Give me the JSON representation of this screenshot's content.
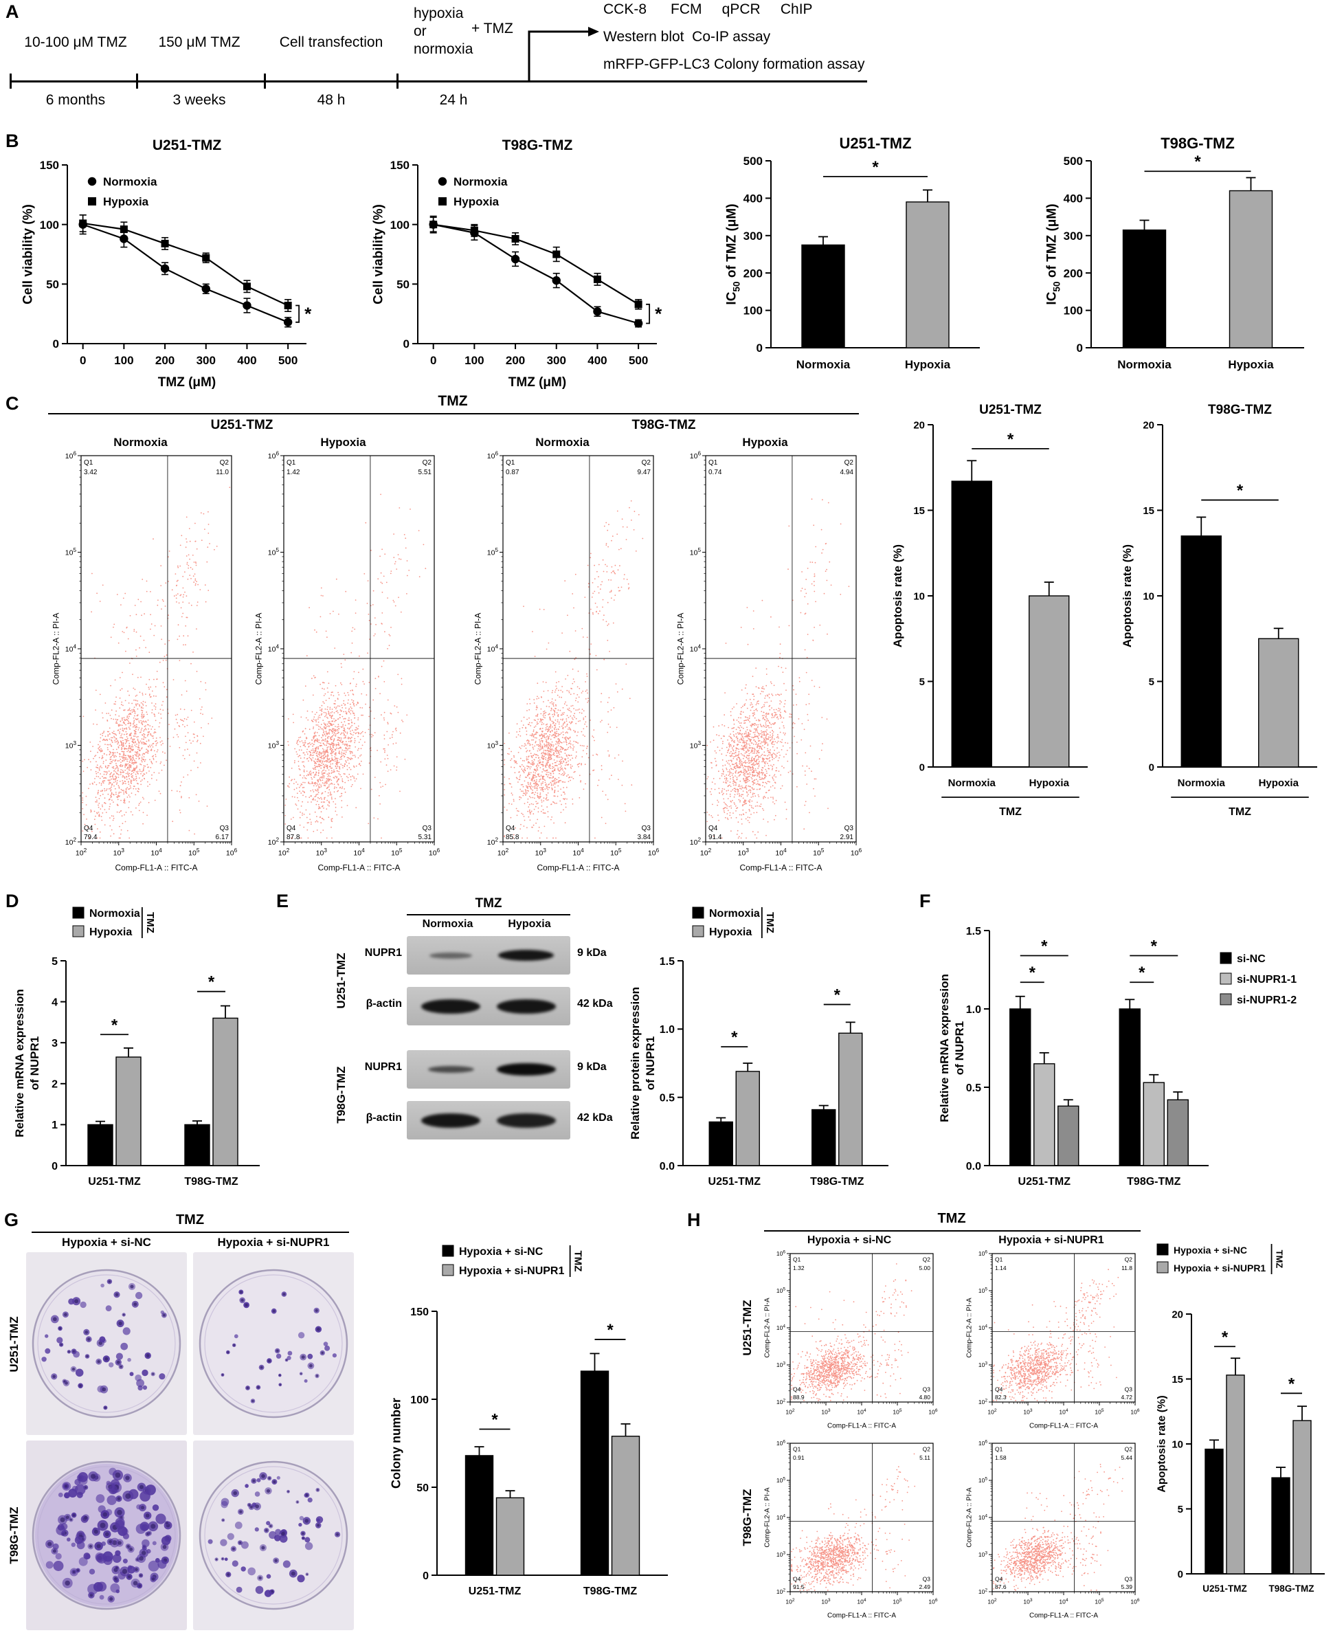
{
  "colors": {
    "bar_gray": "#a9a9a9",
    "bar_gray_light": "#bdbdbd",
    "bar_gray_dark": "#8c8c8c",
    "flow_red": "#ee3a24",
    "colony_purple": "#53379f"
  },
  "panelA": {
    "letter": "A",
    "stage_labels": [
      "10-100 μM TMZ",
      "150 μM TMZ",
      "Cell transfection"
    ],
    "hypoxia_lines": [
      "hypoxia",
      "or",
      "normoxia"
    ],
    "plus_tmz": "+ TMZ",
    "durations": [
      "6 months",
      "3 weeks",
      "48 h",
      "24 h"
    ],
    "assays": [
      "CCK-8      FCM     qPCR     ChIP",
      "Western blot  Co-IP assay",
      "mRFP-GFP-LC3 Colony formation assay"
    ]
  },
  "panelB": {
    "letter": "B"
  },
  "panelC": {
    "letter": "C",
    "tmz": "TMZ",
    "groups": [
      "U251-TMZ",
      "T98G-TMZ"
    ],
    "conds": [
      "Normoxia",
      "Hypoxia",
      "Normoxia",
      "Hypoxia"
    ]
  },
  "panelD": {
    "letter": "D"
  },
  "panelE": {
    "letter": "E",
    "tmz": "TMZ",
    "cols": [
      "Normoxia",
      "Hypoxia"
    ],
    "groups": [
      {
        "cell": "U251-TMZ",
        "rows": [
          {
            "protein": "NUPR1",
            "kda": "9 kDa",
            "bands": [
              {
                "o": 0.5,
                "h": 9,
                "w": 26
              },
              {
                "o": 0.95,
                "h": 16,
                "w": 34
              }
            ]
          },
          {
            "protein": "β-actin",
            "kda": "42 kDa",
            "bands": [
              {
                "o": 0.95,
                "h": 21,
                "w": 36
              },
              {
                "o": 0.95,
                "h": 21,
                "w": 36
              }
            ]
          }
        ]
      },
      {
        "cell": "T98G-TMZ",
        "rows": [
          {
            "protein": "NUPR1",
            "kda": "9 kDa",
            "bands": [
              {
                "o": 0.65,
                "h": 10,
                "w": 28
              },
              {
                "o": 1.0,
                "h": 18,
                "w": 36
              }
            ]
          },
          {
            "protein": "β-actin",
            "kda": "42 kDa",
            "bands": [
              {
                "o": 0.95,
                "h": 21,
                "w": 36
              },
              {
                "o": 0.9,
                "h": 21,
                "w": 36
              }
            ]
          }
        ]
      }
    ]
  },
  "panelF": {
    "letter": "F"
  },
  "panelG": {
    "letter": "G",
    "tmz": "TMZ",
    "cols": [
      "Hypoxia + si-NC",
      "Hypoxia + si-NUPR1"
    ],
    "rows": [
      "U251-TMZ",
      "T98G-TMZ"
    ]
  },
  "panelH": {
    "letter": "H",
    "tmz": "TMZ",
    "cols": [
      "Hypoxia + si-NC",
      "Hypoxia + si-NUPR1"
    ],
    "rows": [
      "U251-TMZ",
      "T98G-TMZ"
    ]
  },
  "dishes": [
    {
      "id": "dish_1",
      "seed": 11,
      "n": 58,
      "rmin": 2.5,
      "rmax": 6,
      "photo": "#eae7ed",
      "dish": "#e7e2ec"
    },
    {
      "id": "dish_2",
      "seed": 12,
      "n": 34,
      "rmin": 2.2,
      "rmax": 5,
      "photo": "#ebe8ee",
      "dish": "#e9e4ee"
    },
    {
      "id": "dish_3",
      "seed": 13,
      "n": 150,
      "rmin": 2.8,
      "rmax": 8,
      "photo": "#e6e1ea",
      "dish": "#d8cfe6",
      "tint": "#8468c4"
    },
    {
      "id": "dish_4",
      "seed": 14,
      "n": 72,
      "rmin": 2.4,
      "rmax": 6,
      "photo": "#eae7ee",
      "dish": "#e7e2ec"
    }
  ],
  "chart_data": [
    {
      "id": "b_line_u251",
      "type": "line",
      "title": "U251-TMZ",
      "xlabel": "TMZ (μM)",
      "ylabel": "Cell viability (%)",
      "x": [
        0,
        100,
        200,
        300,
        400,
        500
      ],
      "xticks": [
        0,
        100,
        200,
        300,
        400,
        500
      ],
      "xlim": [
        -38,
        545
      ],
      "ylim": [
        0,
        150
      ],
      "yticks": [
        0,
        50,
        100,
        150
      ],
      "end_sig": "*",
      "series": [
        {
          "name": "Normoxia",
          "marker": "circle",
          "values": [
            100,
            88,
            63,
            46,
            32,
            18
          ],
          "errors": [
            8,
            7,
            5,
            4,
            6,
            4
          ]
        },
        {
          "name": "Hypoxia",
          "marker": "square",
          "values": [
            101,
            96,
            84,
            72,
            48,
            32
          ],
          "errors": [
            7,
            6,
            5,
            4,
            5,
            5
          ]
        }
      ]
    },
    {
      "id": "b_line_t98g",
      "type": "line",
      "title": "T98G-TMZ",
      "xlabel": "TMZ (μM)",
      "ylabel": "Cell viability (%)",
      "x": [
        0,
        100,
        200,
        300,
        400,
        500
      ],
      "xticks": [
        0,
        100,
        200,
        300,
        400,
        500
      ],
      "xlim": [
        -38,
        545
      ],
      "ylim": [
        0,
        150
      ],
      "yticks": [
        0,
        50,
        100,
        150
      ],
      "end_sig": "*",
      "series": [
        {
          "name": "Normoxia",
          "marker": "circle",
          "values": [
            100,
            93,
            71,
            53,
            27,
            17
          ],
          "errors": [
            7,
            6,
            6,
            6,
            4,
            3
          ]
        },
        {
          "name": "Hypoxia",
          "marker": "square",
          "values": [
            100,
            95,
            88,
            75,
            54,
            33
          ],
          "errors": [
            6,
            5,
            5,
            6,
            5,
            4
          ]
        }
      ]
    },
    {
      "id": "b_bar_u251",
      "type": "bar",
      "title": "U251-TMZ",
      "ylabel_parts": [
        [
          "IC",
          false
        ],
        [
          "50",
          true
        ],
        [
          " of TMZ (μM)",
          false
        ]
      ],
      "categories": [
        "Normoxia",
        "Hypoxia"
      ],
      "values": [
        275,
        390
      ],
      "errors": [
        22,
        32
      ],
      "colors": [
        "#000000",
        "#a9a9a9"
      ],
      "ylim": [
        0,
        500
      ],
      "yticks": [
        0,
        100,
        200,
        300,
        400,
        500
      ],
      "sigs": [
        {
          "a": 0,
          "b": 1,
          "y": 458,
          "label": "*"
        }
      ]
    },
    {
      "id": "b_bar_t98g",
      "type": "bar",
      "title": "T98G-TMZ",
      "ylabel_parts": [
        [
          "IC",
          false
        ],
        [
          "50",
          true
        ],
        [
          " of TMZ (μM)",
          false
        ]
      ],
      "categories": [
        "Normoxia",
        "Hypoxia"
      ],
      "values": [
        315,
        420
      ],
      "errors": [
        26,
        35
      ],
      "colors": [
        "#000000",
        "#a9a9a9"
      ],
      "ylim": [
        0,
        500
      ],
      "yticks": [
        0,
        100,
        200,
        300,
        400,
        500
      ],
      "sigs": [
        {
          "a": 0,
          "b": 1,
          "y": 472,
          "label": "*"
        }
      ]
    },
    {
      "id": "c_flow_1",
      "type": "flow",
      "seed": 101,
      "xlabel": "Comp-FL1-A :: FITC-A",
      "ylabel": "Comp-FL2-A :: PI-A",
      "q": {
        "q1": "3.42",
        "q2": "11.0",
        "q3": "6.17",
        "q4": "79.4"
      }
    },
    {
      "id": "c_flow_2",
      "type": "flow",
      "seed": 102,
      "xlabel": "Comp-FL1-A :: FITC-A",
      "ylabel": "Comp-FL2-A :: PI-A",
      "q": {
        "q1": "1.42",
        "q2": "5.51",
        "q3": "5.31",
        "q4": "87.8"
      }
    },
    {
      "id": "c_flow_3",
      "type": "flow",
      "seed": 103,
      "xlabel": "Comp-FL1-A :: FITC-A",
      "ylabel": "Comp-FL2-A :: PI-A",
      "q": {
        "q1": "0.87",
        "q2": "9.47",
        "q3": "3.84",
        "q4": "85.8"
      }
    },
    {
      "id": "c_flow_4",
      "type": "flow",
      "seed": 104,
      "xlabel": "Comp-FL1-A :: FITC-A",
      "ylabel": "Comp-FL2-A :: PI-A",
      "q": {
        "q1": "0.74",
        "q2": "4.94",
        "q3": "2.91",
        "q4": "91.4"
      }
    },
    {
      "id": "c_bar_u251",
      "type": "bar",
      "title": "U251-TMZ",
      "ylabel": "Apoptosis rate (%)",
      "categories": [
        "Normoxia",
        "Hypoxia"
      ],
      "values": [
        16.7,
        10.0
      ],
      "errors": [
        1.2,
        0.8
      ],
      "colors": [
        "#000000",
        "#a9a9a9"
      ],
      "ylim": [
        0,
        20
      ],
      "yticks": [
        0,
        5,
        10,
        15,
        20
      ],
      "ytick_labels": [
        "0",
        "5",
        "10",
        "15",
        "20"
      ],
      "group_label": "TMZ",
      "sigs": [
        {
          "a": 0,
          "b": 1,
          "y": 18.6,
          "label": "*"
        }
      ]
    },
    {
      "id": "c_bar_t98g",
      "type": "bar",
      "title": "T98G-TMZ",
      "ylabel": "Apoptosis rate (%)",
      "categories": [
        "Normoxia",
        "Hypoxia"
      ],
      "values": [
        13.5,
        7.5
      ],
      "errors": [
        1.1,
        0.6
      ],
      "colors": [
        "#000000",
        "#a9a9a9"
      ],
      "ylim": [
        0,
        20
      ],
      "yticks": [
        0,
        5,
        10,
        15,
        20
      ],
      "ytick_labels": [
        "0",
        "5",
        "10",
        "15",
        "20"
      ],
      "group_label": "TMZ",
      "sigs": [
        {
          "a": 0,
          "b": 1,
          "y": 15.6,
          "label": "*"
        }
      ]
    },
    {
      "id": "d_bar",
      "type": "gbar",
      "ylabel_lines": [
        "Relative mRNA expression",
        "of NUPR1"
      ],
      "categories": [
        "U251-TMZ",
        "T98G-TMZ"
      ],
      "ylim": [
        0,
        5
      ],
      "yticks": [
        0,
        1,
        2,
        3,
        4,
        5
      ],
      "legend": {
        "bracket": "TMZ"
      },
      "series": [
        {
          "name": "Normoxia",
          "color": "#000000",
          "values": [
            1.0,
            1.0
          ],
          "errors": [
            0.08,
            0.09
          ]
        },
        {
          "name": "Hypoxia",
          "color": "#a9a9a9",
          "values": [
            2.65,
            3.6
          ],
          "errors": [
            0.22,
            0.3
          ]
        }
      ],
      "sigs": [
        {
          "g": 0,
          "a": 0,
          "b": 1,
          "y": 3.2,
          "label": "*"
        },
        {
          "g": 1,
          "a": 0,
          "b": 1,
          "y": 4.25,
          "label": "*"
        }
      ]
    },
    {
      "id": "e_bar",
      "type": "gbar",
      "ylabel_lines": [
        "Relative protein expression",
        "of NUPR1"
      ],
      "categories": [
        "U251-TMZ",
        "T98G-TMZ"
      ],
      "ylim": [
        0,
        1.5
      ],
      "yticks": [
        0,
        0.5,
        1,
        1.5
      ],
      "ytick_labels": [
        "0.0",
        "0.5",
        "1.0",
        "1.5"
      ],
      "legend": {
        "bracket": "TMZ"
      },
      "series": [
        {
          "name": "Normoxia",
          "color": "#000000",
          "values": [
            0.32,
            0.41
          ],
          "errors": [
            0.03,
            0.03
          ]
        },
        {
          "name": "Hypoxia",
          "color": "#a9a9a9",
          "values": [
            0.69,
            0.97
          ],
          "errors": [
            0.06,
            0.08
          ]
        }
      ],
      "sigs": [
        {
          "g": 0,
          "a": 0,
          "b": 1,
          "y": 0.87,
          "label": "*"
        },
        {
          "g": 1,
          "a": 0,
          "b": 1,
          "y": 1.18,
          "label": "*"
        }
      ]
    },
    {
      "id": "f_bar",
      "type": "gbar",
      "ylabel_lines": [
        "Relative mRNA expression",
        "of NUPR1"
      ],
      "categories": [
        "U251-TMZ",
        "T98G-TMZ"
      ],
      "ylim": [
        0,
        1.5
      ],
      "yticks": [
        0,
        0.5,
        1,
        1.5
      ],
      "ytick_labels": [
        "0.0",
        "0.5",
        "1.0",
        "1.5"
      ],
      "legend": {},
      "series": [
        {
          "name": "si-NC",
          "color": "#000000",
          "values": [
            1.0,
            1.0
          ],
          "errors": [
            0.08,
            0.06
          ]
        },
        {
          "name": "si-NUPR1-1",
          "color": "#bdbdbd",
          "values": [
            0.65,
            0.53
          ],
          "errors": [
            0.07,
            0.05
          ]
        },
        {
          "name": "si-NUPR1-2",
          "color": "#8c8c8c",
          "values": [
            0.38,
            0.42
          ],
          "errors": [
            0.04,
            0.05
          ]
        }
      ],
      "sigs": [
        {
          "g": 0,
          "a": 0,
          "b": 1,
          "y": 1.17,
          "label": "*"
        },
        {
          "g": 0,
          "a": 0,
          "b": 2,
          "y": 1.34,
          "label": "*"
        },
        {
          "g": 1,
          "a": 0,
          "b": 1,
          "y": 1.17,
          "label": "*"
        },
        {
          "g": 1,
          "a": 0,
          "b": 2,
          "y": 1.34,
          "label": "*"
        }
      ]
    },
    {
      "id": "g_bar",
      "type": "gbar",
      "ylabel": "Colony number",
      "categories": [
        "U251-TMZ",
        "T98G-TMZ"
      ],
      "ylim": [
        0,
        150
      ],
      "yticks": [
        0,
        50,
        100,
        150
      ],
      "legend": {
        "bracket": "TMZ"
      },
      "series": [
        {
          "name": "Hypoxia + si-NC",
          "color": "#000000",
          "values": [
            68,
            116
          ],
          "errors": [
            5,
            10
          ]
        },
        {
          "name": "Hypoxia + si-NUPR1",
          "color": "#a9a9a9",
          "values": [
            44,
            79
          ],
          "errors": [
            4,
            7
          ]
        }
      ],
      "sigs": [
        {
          "g": 0,
          "a": 0,
          "b": 1,
          "y": 83,
          "label": "*"
        },
        {
          "g": 1,
          "a": 0,
          "b": 1,
          "y": 134,
          "label": "*"
        }
      ]
    },
    {
      "id": "h_flow_1",
      "type": "flow",
      "seed": 201,
      "xlabel": "Comp-FL1-A :: FITC-A",
      "ylabel": "Comp-FL2-A :: PI-A",
      "q": {
        "q1": "1.32",
        "q2": "5.00",
        "q3": "4.80",
        "q4": "88.9"
      }
    },
    {
      "id": "h_flow_2",
      "type": "flow",
      "seed": 202,
      "xlabel": "Comp-FL1-A :: FITC-A",
      "ylabel": "Comp-FL2-A :: PI-A",
      "q": {
        "q1": "1.14",
        "q2": "11.8",
        "q3": "4.72",
        "q4": "82.3"
      }
    },
    {
      "id": "h_flow_3",
      "type": "flow",
      "seed": 203,
      "xlabel": "Comp-FL1-A :: FITC-A",
      "ylabel": "Comp-FL2-A :: PI-A",
      "q": {
        "q1": "0.91",
        "q2": "5.11",
        "q3": "2.49",
        "q4": "91.5"
      }
    },
    {
      "id": "h_flow_4",
      "type": "flow",
      "seed": 204,
      "xlabel": "Comp-FL1-A :: FITC-A",
      "ylabel": "Comp-FL2-A :: PI-A",
      "q": {
        "q1": "1.58",
        "q2": "5.44",
        "q3": "5.39",
        "q4": "87.6"
      }
    },
    {
      "id": "h_bar",
      "type": "gbar",
      "ylabel": "Apoptosis rate (%)",
      "categories": [
        "U251-TMZ",
        "T98G-TMZ"
      ],
      "ylim": [
        0,
        20
      ],
      "yticks": [
        0,
        5,
        10,
        15,
        20
      ],
      "legend": {
        "bracket": "TMZ"
      },
      "series": [
        {
          "name": "Hypoxia + si-NC",
          "color": "#000000",
          "values": [
            9.6,
            7.4
          ],
          "errors": [
            0.7,
            0.8
          ]
        },
        {
          "name": "Hypoxia + si-NUPR1",
          "color": "#a9a9a9",
          "values": [
            15.3,
            11.8
          ],
          "errors": [
            1.3,
            1.1
          ]
        }
      ],
      "sigs": [
        {
          "g": 0,
          "a": 0,
          "b": 1,
          "y": 17.5,
          "label": "*"
        },
        {
          "g": 1,
          "a": 0,
          "b": 1,
          "y": 13.9,
          "label": "*"
        }
      ]
    }
  ]
}
